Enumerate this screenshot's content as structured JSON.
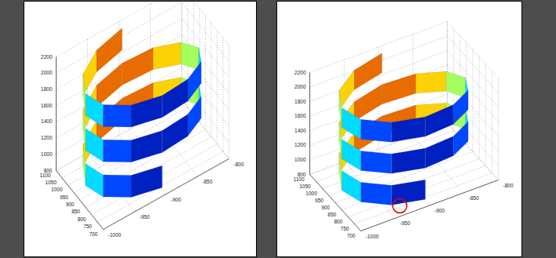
{
  "chart_data": [
    {
      "type": "surface",
      "xlim": [
        700,
        1100
      ],
      "xticks": [
        700,
        750,
        800,
        850,
        900,
        950,
        1000,
        1050,
        1100
      ],
      "ylim": [
        -1000,
        -800
      ],
      "yticks": [
        -1000,
        -950,
        -900,
        -850,
        -800
      ],
      "zlim": [
        800,
        2200
      ],
      "zticks": [
        800,
        1000,
        1200,
        1400,
        1600,
        1800,
        2000,
        2200
      ],
      "grid": true,
      "surface": {
        "x": [
          730,
          753,
          815,
          900,
          985,
          1047,
          1070,
          1047,
          985,
          900,
          815,
          753,
          730,
          753,
          815,
          900,
          985,
          1047,
          1070,
          1047,
          985,
          900,
          815,
          753,
          730,
          753,
          815,
          900,
          985,
          1047,
          1070
        ],
        "y": [
          -900,
          -945,
          -978,
          -990,
          -978,
          -945,
          -900,
          -855,
          -822,
          -810,
          -822,
          -855,
          -900,
          -945,
          -978,
          -990,
          -978,
          -945,
          -900,
          -855,
          -822,
          -810,
          -822,
          -855,
          -900,
          -945,
          -978,
          -990,
          -978,
          -945,
          -900
        ],
        "z_low": [
          820,
          856,
          892,
          928,
          964,
          1000,
          1036,
          1072,
          1108,
          1144,
          1180,
          1216,
          1252,
          1288,
          1324,
          1360,
          1396,
          1432,
          1468,
          1504,
          1540,
          1576,
          1612,
          1648,
          1684,
          1720,
          1756,
          1792,
          1828,
          1864,
          1900
        ],
        "z_high": [
          1090,
          1126,
          1162,
          1198,
          1234,
          1270,
          1306,
          1342,
          1378,
          1414,
          1450,
          1486,
          1522,
          1558,
          1594,
          1630,
          1666,
          1702,
          1738,
          1774,
          1810,
          1846,
          1882,
          1918,
          1954,
          1990,
          2026,
          2062,
          2098,
          2134,
          2170
        ]
      }
    },
    {
      "type": "surface",
      "xlim": [
        700,
        1100
      ],
      "xticks": [
        700,
        750,
        800,
        850,
        900,
        950,
        1000,
        1050,
        1100
      ],
      "ylim": [
        -1000,
        -800
      ],
      "yticks": [
        -1000,
        -950,
        -900,
        -850,
        -800
      ],
      "zlim": [
        800,
        2200
      ],
      "zticks": [
        800,
        1000,
        1200,
        1400,
        1600,
        1800,
        2000,
        2200
      ],
      "grid": true,
      "surface": {
        "x": [
          730,
          753,
          815,
          900,
          985,
          1047,
          1070,
          1047,
          985,
          900,
          815,
          753,
          730,
          753,
          815,
          900,
          985,
          1047,
          1070,
          1047,
          985,
          900,
          815,
          753,
          730,
          753,
          815,
          900,
          985,
          1047,
          1070
        ],
        "y": [
          -900,
          -945,
          -978,
          -990,
          -978,
          -945,
          -900,
          -855,
          -822,
          -810,
          -822,
          -855,
          -900,
          -945,
          -978,
          -990,
          -978,
          -945,
          -900,
          -855,
          -822,
          -810,
          -822,
          -855,
          -900,
          -945,
          -978,
          -990,
          -978,
          -945,
          -900
        ],
        "z_low": [
          820,
          856,
          892,
          928,
          964,
          1000,
          1036,
          1072,
          1108,
          1144,
          1180,
          1216,
          1252,
          1288,
          1324,
          1360,
          1396,
          1432,
          1468,
          1504,
          1540,
          1576,
          1612,
          1648,
          1684,
          1720,
          1756,
          1792,
          1828,
          1864,
          1900
        ],
        "z_high": [
          1090,
          1126,
          1162,
          1198,
          1234,
          1270,
          1306,
          1342,
          1378,
          1414,
          1450,
          1486,
          1522,
          1558,
          1594,
          1630,
          1666,
          1702,
          1738,
          1774,
          1810,
          1846,
          1882,
          1918,
          1954,
          1990,
          2026,
          2062,
          2098,
          2134,
          2170
        ]
      },
      "highlight": {
        "x": 745,
        "y": -935,
        "z": 830,
        "color": "#e00000"
      }
    }
  ]
}
